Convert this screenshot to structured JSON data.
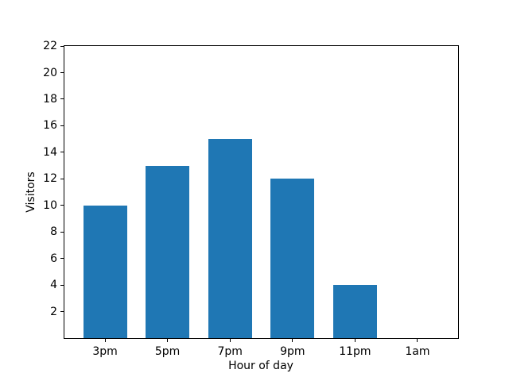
{
  "chart_data": {
    "type": "bar",
    "categories": [
      "3pm",
      "5pm",
      "7pm",
      "9pm",
      "11pm",
      "1am"
    ],
    "values": [
      10,
      13,
      15,
      12,
      4,
      0
    ],
    "title": "",
    "xlabel": "Hour of day",
    "ylabel": "Visitors",
    "ylim": [
      0,
      22
    ],
    "yticks": [
      2,
      4,
      6,
      8,
      10,
      12,
      14,
      16,
      18,
      20,
      22
    ],
    "xlim": [
      -0.65,
      5.65
    ],
    "bar_width_ratio": 0.7,
    "bar_color": "#1f77b4",
    "grid": false,
    "legend": null
  }
}
